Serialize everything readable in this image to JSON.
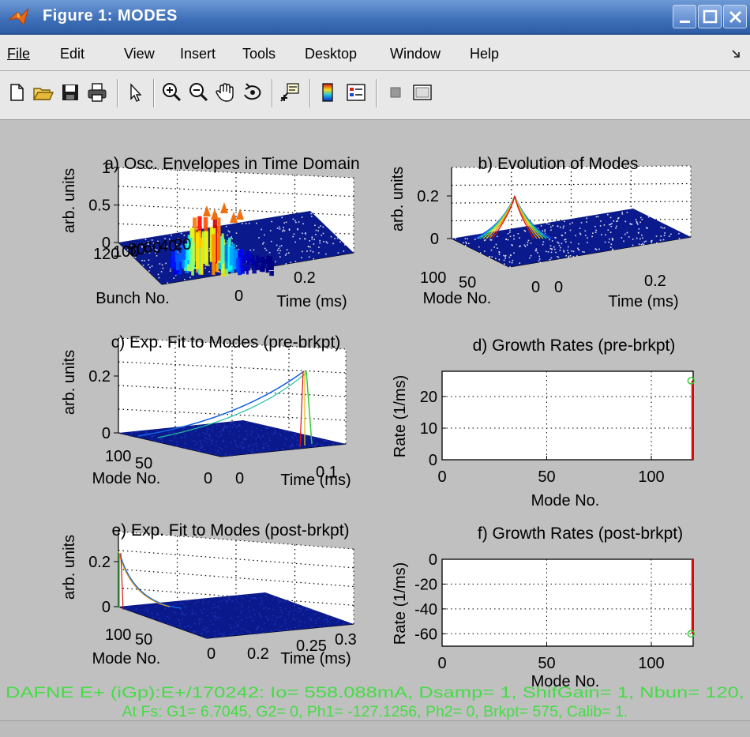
{
  "window": {
    "title": "Figure 1:   MODES"
  },
  "menu": [
    "File",
    "Edit",
    "View",
    "Insert",
    "Tools",
    "Desktop",
    "Window",
    "Help"
  ],
  "toolbar": [
    "new-file",
    "open-file",
    "save",
    "print",
    "pointer",
    "zoom-in",
    "zoom-out",
    "pan",
    "rotate-3d",
    "data-cursor",
    "colorbar",
    "legend",
    "hide-tools",
    "show-tools"
  ],
  "colors": {
    "surface": "#0a1a8c",
    "fit_green": "#33cc33",
    "footer_green": "#44dd44",
    "peak_red": "#e01010"
  },
  "chart_data": [
    {
      "type": "surface3d",
      "title": "a) Osc. Envelopes in Time Domain",
      "ylabel": "arb. units",
      "xlabel": "Bunch No.",
      "tlabel": "Time (ms)",
      "z_ticks": [
        "1",
        "0.5",
        "0"
      ],
      "x_ticks": [
        "120",
        "100",
        "80",
        "60",
        "40",
        "20",
        "0"
      ],
      "t_ticks": [
        "0.2"
      ],
      "x_range": [
        0,
        120
      ],
      "t_range_ms": [
        0,
        0.3
      ],
      "zlim": [
        0,
        1
      ]
    },
    {
      "type": "surface3d",
      "title": "b) Evolution of Modes",
      "ylabel": "arb. units",
      "xlabel": "Mode No.",
      "tlabel": "Time (ms)",
      "z_ticks": [
        "0.2",
        "0"
      ],
      "x_ticks": [
        "100",
        "50",
        "0"
      ],
      "t_ticks": [
        "0",
        "0.2"
      ],
      "x_range": [
        0,
        120
      ],
      "t_range_ms": [
        0,
        0.3
      ],
      "zlim": [
        0,
        0.35
      ]
    },
    {
      "type": "surface3d",
      "title": "c) Exp. Fit to Modes (pre-brkpt)",
      "ylabel": "arb. units",
      "xlabel": "Mode No.",
      "tlabel": "Time (ms)",
      "z_ticks": [
        "0.2",
        "0"
      ],
      "x_ticks": [
        "100",
        "50",
        "0"
      ],
      "t_ticks": [
        "0",
        "0.1"
      ],
      "x_range": [
        0,
        120
      ],
      "t_range_ms": [
        0,
        0.15
      ],
      "zlim": [
        0,
        0.35
      ]
    },
    {
      "type": "stem",
      "title": "d) Growth Rates (pre-brkpt)",
      "ylabel": "Rate   (1/ms)",
      "xlabel": "Mode No.",
      "x_ticks": [
        0,
        50,
        100
      ],
      "y_ticks": [
        0,
        10,
        20
      ],
      "xlim": [
        0,
        120
      ],
      "ylim": [
        0,
        28
      ],
      "points": [
        {
          "x": 119,
          "y": 25
        }
      ]
    },
    {
      "type": "surface3d",
      "title": "e) Exp. Fit to Modes (post-brkpt)",
      "ylabel": "arb. units",
      "xlabel": "Mode No.",
      "tlabel": "Time (ms)",
      "z_ticks": [
        "0.2",
        "0"
      ],
      "x_ticks": [
        "100",
        "50",
        "0"
      ],
      "t_ticks": [
        "0.2",
        "0.25",
        "0.3"
      ],
      "x_range": [
        0,
        120
      ],
      "t_range_ms": [
        0.15,
        0.35
      ],
      "zlim": [
        0,
        0.35
      ]
    },
    {
      "type": "stem",
      "title": "f) Growth Rates (post-brkpt)",
      "ylabel": "Rate   (1/ms)",
      "xlabel": "Mode No.",
      "x_ticks": [
        0,
        50,
        100
      ],
      "y_ticks": [
        0,
        -20,
        -40,
        -60
      ],
      "xlim": [
        0,
        120
      ],
      "ylim": [
        -70,
        0
      ],
      "points": [
        {
          "x": 119,
          "y": -60
        }
      ]
    }
  ],
  "footer": {
    "line1": "DAFNE E+ (iGp):E+/170242:  Io= 558.088mA,  Dsamp= 1,  ShifGain= 1, Nbun= 120,",
    "line2": "At Fs: G1= 6.7045,  G2= 0,  Ph1= -127.1256,  Ph2= 0,  Brkpt= 575,  Calib= 1."
  }
}
